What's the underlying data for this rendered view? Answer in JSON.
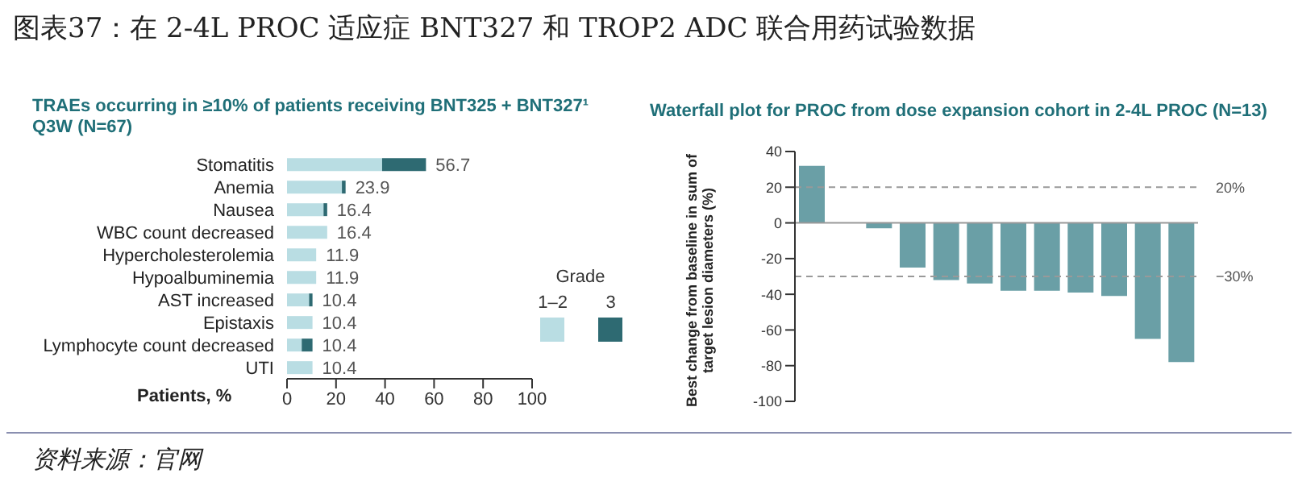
{
  "chart_data": [
    {
      "type": "bar",
      "orientation": "horizontal",
      "stacked": true,
      "title": "图表37：在 2-4L PROC 适应症 BNT327 和 TROP2 ADC 联合用药试验数据",
      "subtitle": "TRAEs occurring in  ≥10% of patients receiving BNT325 + BNT327¹ Q3W (N=67)",
      "xlabel": "Patients, %",
      "legend_title": "Grade",
      "legend": "bottom right",
      "categories": [
        "Stomatitis",
        "Anemia",
        "Nausea",
        "WBC count decreased",
        "Hypercholesterolemia",
        "Hypoalbuminemia",
        "AST increased",
        "Epistaxis",
        "Lymphocyte count decreased",
        "UTI"
      ],
      "series": [
        {
          "name": "1–2",
          "color": "#b9dde3",
          "values": [
            38.8,
            22.4,
            14.9,
            16.4,
            11.9,
            11.9,
            9.0,
            10.4,
            6.0,
            10.4
          ]
        },
        {
          "name": "3",
          "color": "#2e6a72",
          "values": [
            17.9,
            1.5,
            1.5,
            0,
            0,
            0,
            1.4,
            0,
            4.4,
            0
          ]
        }
      ],
      "totals": [
        "56.7",
        "23.9",
        "16.4",
        "16.4",
        "11.9",
        "11.9",
        "10.4",
        "10.4",
        "10.4",
        "10.4"
      ],
      "xlim": [
        0,
        100
      ],
      "xticks": [
        0,
        20,
        40,
        60,
        80,
        100
      ],
      "grid": false,
      "annotations": [
        "资料来源：官网"
      ]
    },
    {
      "type": "bar",
      "title": "Waterfall plot for PROC from dose expansion cohort in 2-4L PROC (N=13)",
      "ylabel": "Best change from baseline in sum of target lesion diameters (%)",
      "categories": [
        null,
        null,
        null,
        null,
        null,
        null,
        null,
        null,
        null,
        null,
        null,
        null
      ],
      "values": [
        32,
        null,
        -3,
        -25,
        -32,
        -34,
        -38,
        -38,
        -39,
        -41,
        -65,
        -78
      ],
      "color": "#6a9fa6",
      "ylim": [
        -100,
        40
      ],
      "yticks": [
        -100,
        -80,
        -60,
        -40,
        -20,
        0,
        20,
        40
      ],
      "tick_labels": "y",
      "grid": false,
      "ref_lines": [
        {
          "axis": "y",
          "value": 20,
          "label": "20%",
          "color": "#999999",
          "line_style": "dashed"
        },
        {
          "axis": "y",
          "value": -30,
          "label": "−30%",
          "color": "#999999",
          "line_style": "dashed"
        }
      ]
    }
  ]
}
